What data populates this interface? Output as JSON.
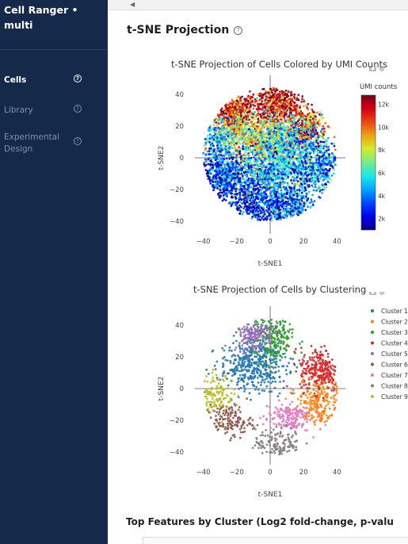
{
  "app": {
    "title": "Cell Ranger • multi"
  },
  "sidebar": {
    "items": [
      {
        "label": "Cells",
        "active": true
      },
      {
        "label": "Library",
        "active": false
      },
      {
        "label": "Experimental Design",
        "active": false
      }
    ],
    "help_glyph": "?"
  },
  "main": {
    "section_title": "t-SNE Projection",
    "bottom_section_title": "Top Features by Cluster (Log2 fold-change, p-valu"
  },
  "colors": {
    "sidebar_bg": "#15294b",
    "accent": "#ffffff",
    "muted": "#7f90ae"
  },
  "chart_data": [
    {
      "type": "scatter",
      "title": "t-SNE Projection of Cells Colored by UMI Counts",
      "xlabel": "t-SNE1",
      "ylabel": "t-SNE2",
      "xlim": [
        -45,
        45
      ],
      "ylim": [
        -48,
        52
      ],
      "x_ticks": [
        -40,
        -20,
        0,
        20,
        40
      ],
      "y_ticks": [
        -40,
        -20,
        0,
        20,
        40
      ],
      "colorbar": {
        "title": "UMI counts",
        "ticks": [
          "12k",
          "10k",
          "8k",
          "6k",
          "4k",
          "2k"
        ],
        "range": [
          1000,
          12800
        ],
        "colormap": "jet"
      },
      "regions": [
        {
          "x": -22,
          "y": 28,
          "sx": 7,
          "sy": 7,
          "w": 8,
          "umi": 11000
        },
        {
          "x": 4,
          "y": 33,
          "sx": 8,
          "sy": 7,
          "w": 10,
          "umi": 11500
        },
        {
          "x": 22,
          "y": 18,
          "sx": 6,
          "sy": 6,
          "w": 6,
          "umi": 10500
        },
        {
          "x": -10,
          "y": 12,
          "sx": 10,
          "sy": 7,
          "w": 10,
          "umi": 8000
        },
        {
          "x": 10,
          "y": 10,
          "sx": 9,
          "sy": 7,
          "w": 10,
          "umi": 6000
        },
        {
          "x": -32,
          "y": 10,
          "sx": 5,
          "sy": 7,
          "w": 5,
          "umi": 5000
        },
        {
          "x": 28,
          "y": -5,
          "sx": 8,
          "sy": 9,
          "w": 10,
          "umi": 4000
        },
        {
          "x": -28,
          "y": -12,
          "sx": 8,
          "sy": 7,
          "w": 10,
          "umi": 3000
        },
        {
          "x": -8,
          "y": -28,
          "sx": 9,
          "sy": 8,
          "w": 10,
          "umi": 2500
        },
        {
          "x": 12,
          "y": -30,
          "sx": 8,
          "sy": 7,
          "w": 8,
          "umi": 3500
        },
        {
          "x": 0,
          "y": -8,
          "sx": 10,
          "sy": 7,
          "w": 10,
          "umi": 5000
        }
      ]
    },
    {
      "type": "scatter",
      "title": "t-SNE Projection of Cells by Clustering",
      "xlabel": "t-SNE1",
      "ylabel": "t-SNE2",
      "xlim": [
        -45,
        45
      ],
      "ylim": [
        -48,
        52
      ],
      "x_ticks": [
        -40,
        -20,
        0,
        20,
        40
      ],
      "y_ticks": [
        -40,
        -20,
        0,
        20,
        40
      ],
      "series": [
        {
          "name": "Cluster 1",
          "color": "#1f77b4",
          "x": -10,
          "y": 15,
          "sx": 10,
          "sy": 8,
          "n": 420
        },
        {
          "name": "Cluster 2",
          "color": "#ff7f0e",
          "x": 30,
          "y": -8,
          "sx": 7,
          "sy": 8,
          "n": 260
        },
        {
          "name": "Cluster 3",
          "color": "#2ca02c",
          "x": 2,
          "y": 32,
          "sx": 6,
          "sy": 9,
          "n": 240
        },
        {
          "name": "Cluster 4",
          "color": "#d62728",
          "x": 30,
          "y": 12,
          "sx": 6,
          "sy": 7,
          "n": 250
        },
        {
          "name": "Cluster 5",
          "color": "#9467bd",
          "x": -10,
          "y": 35,
          "sx": 6,
          "sy": 6,
          "n": 170
        },
        {
          "name": "Cluster 6",
          "color": "#8c564b",
          "x": -25,
          "y": -20,
          "sx": 7,
          "sy": 5,
          "n": 160
        },
        {
          "name": "Cluster 7",
          "color": "#e377c2",
          "x": 10,
          "y": -18,
          "sx": 7,
          "sy": 5,
          "n": 160
        },
        {
          "name": "Cluster 8",
          "color": "#7f7f7f",
          "x": 5,
          "y": -35,
          "sx": 7,
          "sy": 5,
          "n": 140
        },
        {
          "name": "Cluster 9",
          "color": "#bcbd22",
          "x": -32,
          "y": -3,
          "sx": 5,
          "sy": 6,
          "n": 120
        }
      ]
    }
  ]
}
